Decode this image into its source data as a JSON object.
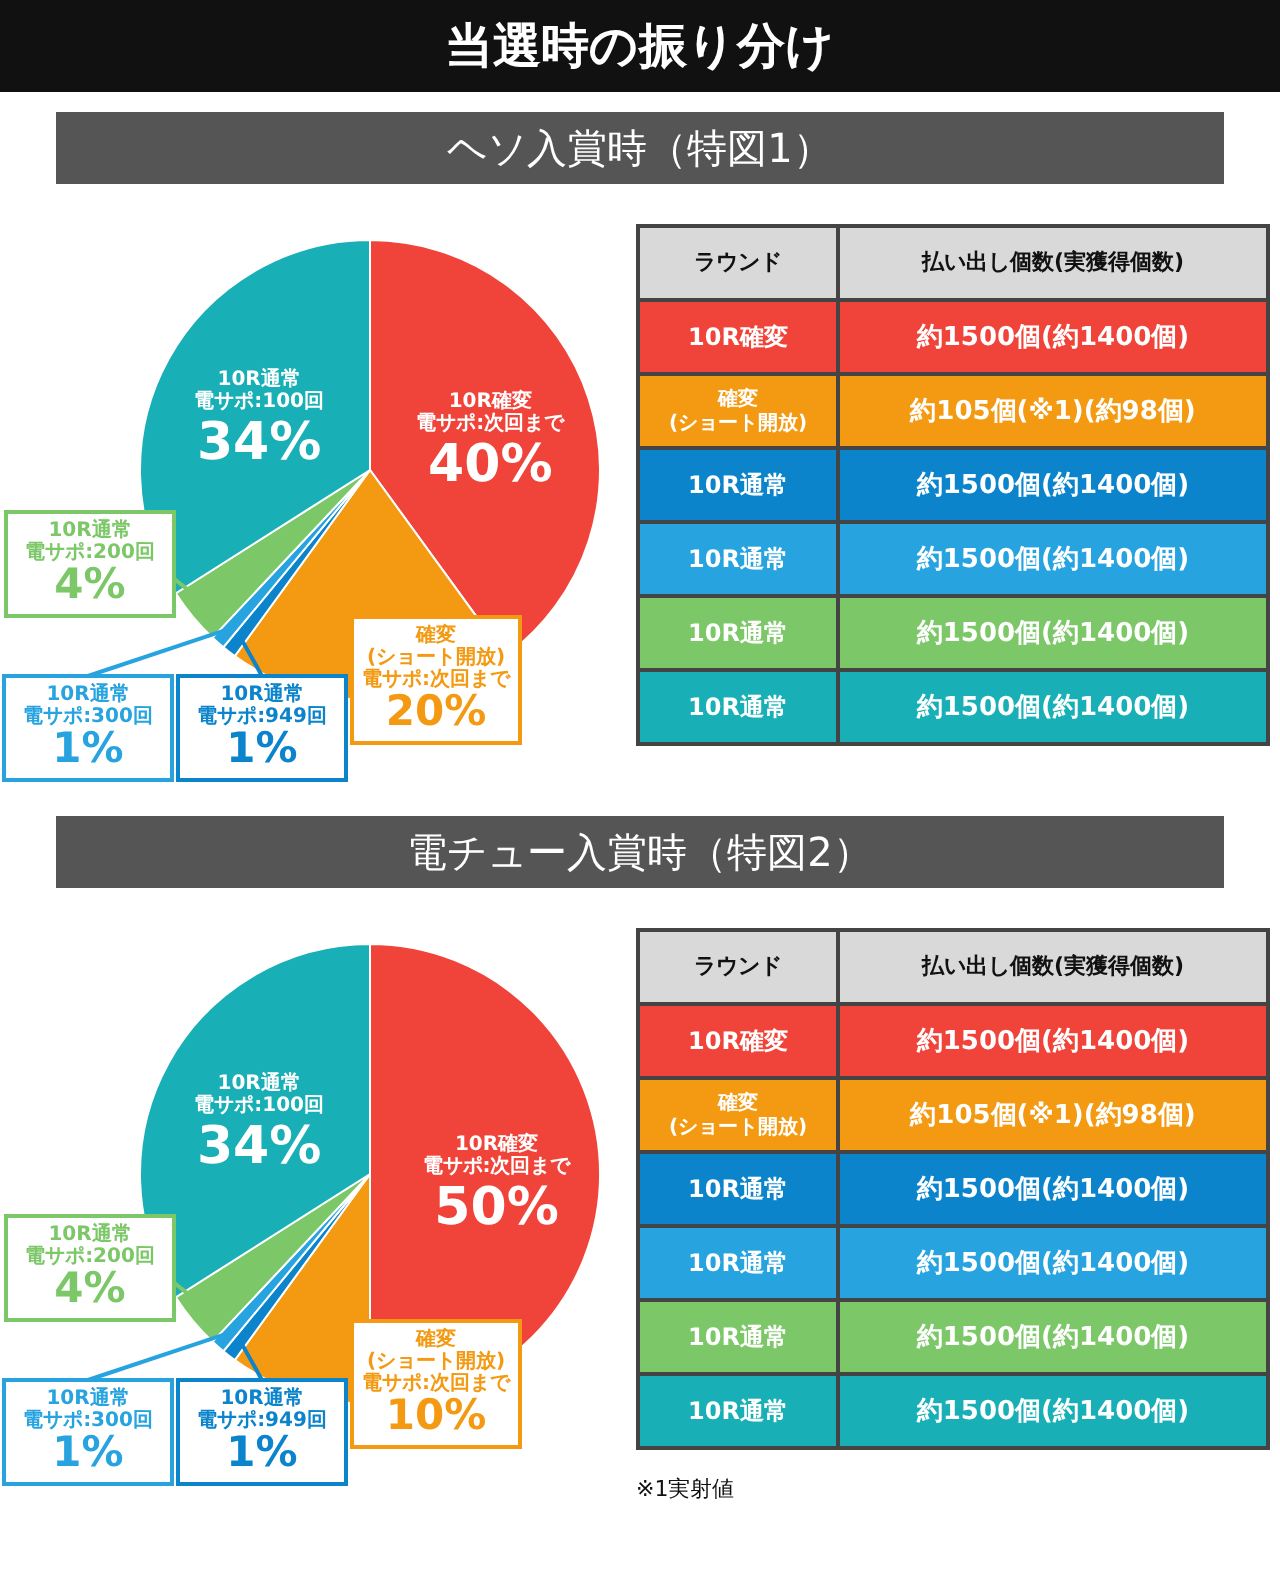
{
  "chart_data": [
    {
      "type": "pie",
      "title": "当選時の振り分け",
      "subtitle": "ヘソ入賞時（特図1）",
      "categories": [
        "10R確変電サポ:次回まで",
        "確変(ショート開放)電サポ:次回まで",
        "10R通常電サポ:949回",
        "10R通常電サポ:300回",
        "10R通常電サポ:200回",
        "10R通常電サポ:100回"
      ],
      "values": [
        40,
        20,
        1,
        1,
        4,
        34
      ],
      "value_labels": [
        "40%",
        "20%",
        "1%",
        "1%",
        "4%",
        "34%"
      ],
      "colors": [
        "#f0443a",
        "#f39a12",
        "#0b84cc",
        "#27a4e0",
        "#7cc767",
        "#18afb6"
      ]
    },
    {
      "type": "other",
      "annotations": [
        "ラウンド",
        "払い出し個数(実獲得個数)",
        "10R確変",
        "約1500個(約1400個)",
        "確変(ショート開放)",
        "約105個(※1)(約98個)",
        "10R通常",
        "約1500個(約1400個)",
        "10R通常",
        "約1500個(約1400個)",
        "10R通常",
        "約1500個(約1400個)",
        "10R通常",
        "約1500個(約1400個)"
      ],
      "colors": [
        "#d9d9d9",
        "#f0443a",
        "#f39a12",
        "#0b84cc",
        "#27a4e0",
        "#7cc767",
        "#18afb6"
      ]
    },
    {
      "type": "pie",
      "subtitle": "電チュー入賞時（特図2）",
      "categories": [
        "10R確変電サポ:次回まで",
        "確変(ショート開放)電サポ:次回まで",
        "10R通常電サポ:949回",
        "10R通常電サポ:300回",
        "10R通常電サポ:200回",
        "10R通常電サポ:100回"
      ],
      "values": [
        50,
        10,
        1,
        1,
        4,
        34
      ],
      "value_labels": [
        "50%",
        "10%",
        "1%",
        "1%",
        "4%",
        "34%"
      ],
      "colors": [
        "#f0443a",
        "#f39a12",
        "#0b84cc",
        "#27a4e0",
        "#7cc767",
        "#18afb6"
      ]
    },
    {
      "type": "other",
      "annotations": [
        "ラウンド",
        "払い出し個数(実獲得個数)",
        "10R確変",
        "約1500個(約1400個)",
        "確変(ショート開放)",
        "約105個(※1)(約98個)",
        "10R通常",
        "約1500個(約1400個)",
        "10R通常",
        "約1500個(約1400個)",
        "10R通常",
        "約1500個(約1400個)",
        "10R通常",
        "約1500個(約1400個)",
        "※1実射値"
      ],
      "colors": [
        "#d9d9d9",
        "#f0443a",
        "#f39a12",
        "#0b84cc",
        "#27a4e0",
        "#7cc767",
        "#18afb6"
      ]
    }
  ]
}
